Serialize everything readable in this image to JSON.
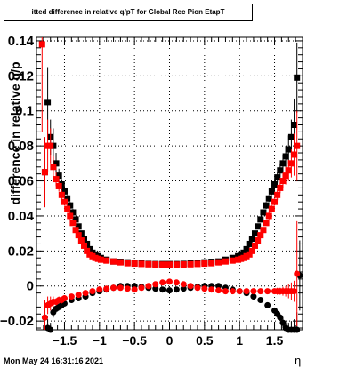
{
  "chart_data": {
    "type": "scatter",
    "title": "itted difference in relative q/pT  for Global Rec Pion EtapT",
    "xlabel": "η",
    "ylabel": "difference in relative q/p",
    "xlim": [
      -1.9,
      1.9
    ],
    "ylim": [
      -0.025,
      0.142
    ],
    "grid": true,
    "x_ticks": [
      -1.5,
      -1,
      -0.5,
      0,
      0.5,
      1,
      1.5
    ],
    "x_tick_labels": [
      "−1.5",
      "−1",
      "−0.5",
      "0",
      "0.5",
      "1",
      "1.5"
    ],
    "y_ticks": [
      -0.02,
      0,
      0.02,
      0.04,
      0.06,
      0.08,
      0.1,
      0.12,
      0.14
    ],
    "y_tick_labels": [
      "−0.02",
      "0",
      "0.02",
      "0.04",
      "0.06",
      "0.08",
      "0.1",
      "0.12",
      "0.14"
    ],
    "colors": {
      "black_series": "#000000",
      "red_series": "#ff0000"
    },
    "series": [
      {
        "color": "#000000",
        "x": [
          -1.78,
          -1.74,
          -1.7,
          -1.66,
          -1.62,
          -1.58,
          -1.54,
          -1.5,
          -1.46,
          -1.42,
          -1.38,
          -1.34,
          -1.3,
          -1.26,
          -1.22,
          -1.18,
          -1.14,
          -1.1,
          -1.06,
          -1.02,
          -0.98,
          -0.9,
          -0.8,
          -0.7,
          -0.6,
          -0.5,
          -0.4,
          -0.3,
          -0.2,
          -0.1,
          0.0,
          0.1,
          0.2,
          0.3,
          0.4,
          0.5,
          0.6,
          0.7,
          0.8,
          0.9,
          0.98,
          1.02,
          1.06,
          1.1,
          1.14,
          1.18,
          1.22,
          1.26,
          1.3,
          1.34,
          1.38,
          1.42,
          1.46,
          1.5,
          1.54,
          1.58,
          1.62,
          1.66,
          1.7,
          1.74,
          1.78,
          1.82
        ],
        "y": [
          0.065,
          0.105,
          0.085,
          0.08,
          0.07,
          0.063,
          0.058,
          0.054,
          0.05,
          0.046,
          0.042,
          0.038,
          0.034,
          0.03,
          0.027,
          0.024,
          0.021,
          0.019,
          0.018,
          0.017,
          0.016,
          0.015,
          0.014,
          0.0138,
          0.0135,
          0.013,
          0.0128,
          0.0126,
          0.0125,
          0.0125,
          0.0125,
          0.0125,
          0.0126,
          0.0128,
          0.013,
          0.0135,
          0.0138,
          0.014,
          0.015,
          0.016,
          0.017,
          0.018,
          0.019,
          0.021,
          0.024,
          0.027,
          0.03,
          0.034,
          0.038,
          0.042,
          0.046,
          0.05,
          0.054,
          0.058,
          0.062,
          0.066,
          0.07,
          0.074,
          0.078,
          0.085,
          0.092,
          0.119
        ],
        "err": [
          0.02,
          0.02,
          0.01,
          0.01,
          0.006,
          0.004,
          0.003,
          0.003,
          0.002,
          0.002,
          0.002,
          0.0015,
          0.0015,
          0.0015,
          0.0015,
          0.0012,
          0.0012,
          0.001,
          0.001,
          0.001,
          0.001,
          0.0008,
          0.0008,
          0.0008,
          0.0008,
          0.0008,
          0.0008,
          0.0008,
          0.0008,
          0.0008,
          0.0008,
          0.0008,
          0.0008,
          0.0008,
          0.0008,
          0.0008,
          0.0008,
          0.0008,
          0.0008,
          0.0008,
          0.001,
          0.001,
          0.001,
          0.001,
          0.0012,
          0.0012,
          0.0015,
          0.0015,
          0.0015,
          0.0015,
          0.002,
          0.002,
          0.002,
          0.003,
          0.003,
          0.004,
          0.005,
          0.006,
          0.008,
          0.01,
          0.015,
          0.02
        ]
      },
      {
        "color": "#ff0000",
        "x": [
          -1.82,
          -1.78,
          -1.74,
          -1.7,
          -1.66,
          -1.62,
          -1.58,
          -1.54,
          -1.5,
          -1.46,
          -1.42,
          -1.38,
          -1.34,
          -1.3,
          -1.26,
          -1.22,
          -1.18,
          -1.14,
          -1.1,
          -1.06,
          -1.02,
          -0.98,
          -0.9,
          -0.8,
          -0.7,
          -0.6,
          -0.5,
          -0.4,
          -0.3,
          -0.2,
          -0.1,
          0.0,
          0.1,
          0.2,
          0.3,
          0.4,
          0.5,
          0.6,
          0.7,
          0.8,
          0.9,
          0.98,
          1.02,
          1.06,
          1.1,
          1.14,
          1.18,
          1.22,
          1.26,
          1.3,
          1.34,
          1.38,
          1.42,
          1.46,
          1.5,
          1.54,
          1.58,
          1.62,
          1.66,
          1.7,
          1.74,
          1.78,
          1.82
        ],
        "y": [
          0.138,
          0.065,
          0.08,
          0.08,
          0.068,
          0.061,
          0.057,
          0.052,
          0.048,
          0.044,
          0.04,
          0.036,
          0.032,
          0.029,
          0.026,
          0.023,
          0.02,
          0.018,
          0.017,
          0.016,
          0.0155,
          0.015,
          0.0145,
          0.014,
          0.0135,
          0.013,
          0.0128,
          0.0126,
          0.0124,
          0.0123,
          0.0122,
          0.0122,
          0.0122,
          0.0123,
          0.0124,
          0.0126,
          0.0128,
          0.013,
          0.0135,
          0.014,
          0.0145,
          0.015,
          0.0155,
          0.016,
          0.017,
          0.018,
          0.02,
          0.023,
          0.026,
          0.029,
          0.032,
          0.036,
          0.04,
          0.044,
          0.048,
          0.052,
          0.056,
          0.06,
          0.063,
          0.066,
          0.07,
          0.075,
          0.08
        ],
        "err": [
          0.05,
          0.02,
          0.015,
          0.01,
          0.006,
          0.004,
          0.003,
          0.003,
          0.002,
          0.002,
          0.002,
          0.0015,
          0.0015,
          0.0015,
          0.0012,
          0.0012,
          0.0012,
          0.001,
          0.001,
          0.001,
          0.001,
          0.001,
          0.0008,
          0.0008,
          0.0008,
          0.0008,
          0.0008,
          0.0008,
          0.0008,
          0.0008,
          0.0008,
          0.0008,
          0.0008,
          0.0008,
          0.0008,
          0.0008,
          0.0008,
          0.0008,
          0.0008,
          0.0008,
          0.0008,
          0.001,
          0.001,
          0.001,
          0.001,
          0.001,
          0.0012,
          0.0012,
          0.0012,
          0.0015,
          0.0015,
          0.0015,
          0.002,
          0.002,
          0.002,
          0.003,
          0.003,
          0.004,
          0.005,
          0.006,
          0.008,
          0.012,
          0.02
        ]
      },
      {
        "color": "#000000",
        "x": [
          -1.78,
          -1.74,
          -1.7,
          -1.66,
          -1.62,
          -1.58,
          -1.54,
          -1.5,
          -1.4,
          -1.3,
          -1.2,
          -1.1,
          -1.0,
          -0.9,
          -0.8,
          -0.7,
          -0.6,
          -0.5,
          -0.4,
          -0.3,
          -0.2,
          -0.1,
          0.0,
          0.1,
          0.2,
          0.3,
          0.4,
          0.5,
          0.6,
          0.7,
          0.8,
          0.9,
          1.0,
          1.1,
          1.2,
          1.3,
          1.4,
          1.5,
          1.54,
          1.58,
          1.62,
          1.66,
          1.7,
          1.74,
          1.78,
          1.82,
          1.86
        ],
        "y": [
          -0.018,
          -0.024,
          -0.025,
          -0.015,
          -0.013,
          -0.012,
          -0.011,
          -0.01,
          -0.008,
          -0.007,
          -0.006,
          -0.004,
          -0.003,
          -0.002,
          -0.001,
          0.0,
          0.0,
          0.0,
          -0.0005,
          -0.001,
          -0.0015,
          -0.002,
          -0.0025,
          -0.002,
          -0.0015,
          -0.001,
          -0.0005,
          0.0,
          0.0,
          0.0,
          -0.001,
          -0.002,
          -0.003,
          -0.004,
          -0.006,
          -0.008,
          -0.011,
          -0.014,
          -0.016,
          -0.018,
          -0.021,
          -0.024,
          -0.025,
          -0.025,
          -0.025,
          -0.025,
          0.006
        ],
        "err": [
          0.01,
          0.005,
          0.004,
          0.003,
          0.002,
          0.002,
          0.002,
          0.0015,
          0.0012,
          0.001,
          0.001,
          0.0008,
          0.0008,
          0.0008,
          0.0008,
          0.0008,
          0.0008,
          0.0008,
          0.0008,
          0.0008,
          0.0008,
          0.0008,
          0.0008,
          0.0008,
          0.0008,
          0.0008,
          0.0008,
          0.0008,
          0.0008,
          0.0008,
          0.0008,
          0.0008,
          0.0008,
          0.001,
          0.001,
          0.001,
          0.0012,
          0.0015,
          0.002,
          0.002,
          0.003,
          0.003,
          0.004,
          0.005,
          0.006,
          0.01,
          0.02
        ]
      },
      {
        "color": "#ff0000",
        "x": [
          -1.78,
          -1.74,
          -1.7,
          -1.66,
          -1.62,
          -1.58,
          -1.54,
          -1.5,
          -1.4,
          -1.3,
          -1.2,
          -1.1,
          -1.0,
          -0.9,
          -0.8,
          -0.7,
          -0.6,
          -0.5,
          -0.4,
          -0.3,
          -0.2,
          -0.1,
          0.0,
          0.1,
          0.2,
          0.3,
          0.4,
          0.5,
          0.6,
          0.7,
          0.8,
          0.9,
          1.0,
          1.1,
          1.2,
          1.3,
          1.4,
          1.5,
          1.54,
          1.58,
          1.62,
          1.66,
          1.7,
          1.74,
          1.78,
          1.82
        ],
        "y": [
          -0.018,
          -0.011,
          -0.01,
          -0.009,
          -0.009,
          -0.008,
          -0.008,
          -0.007,
          -0.006,
          -0.005,
          -0.004,
          -0.003,
          -0.002,
          -0.0015,
          -0.001,
          -0.001,
          -0.0015,
          -0.002,
          -0.001,
          0.0,
          0.001,
          0.002,
          0.0025,
          0.002,
          0.001,
          0.0,
          -0.001,
          -0.0015,
          -0.002,
          -0.0025,
          -0.003,
          -0.003,
          -0.003,
          -0.003,
          -0.003,
          -0.003,
          -0.003,
          -0.003,
          -0.003,
          -0.003,
          -0.003,
          -0.003,
          -0.003,
          -0.003,
          -0.003,
          0.007
        ],
        "err": [
          0.01,
          0.005,
          0.004,
          0.003,
          0.002,
          0.002,
          0.002,
          0.0015,
          0.0012,
          0.001,
          0.001,
          0.0008,
          0.0008,
          0.0008,
          0.0008,
          0.0008,
          0.0008,
          0.0008,
          0.0008,
          0.0008,
          0.0008,
          0.0008,
          0.0008,
          0.0008,
          0.0008,
          0.0008,
          0.0008,
          0.0008,
          0.0008,
          0.0008,
          0.0008,
          0.0008,
          0.0008,
          0.0008,
          0.001,
          0.001,
          0.0012,
          0.0015,
          0.002,
          0.002,
          0.0025,
          0.003,
          0.004,
          0.005,
          0.006,
          0.03
        ]
      }
    ]
  },
  "timestamp": "Mon May 24 16:31:16 2021"
}
